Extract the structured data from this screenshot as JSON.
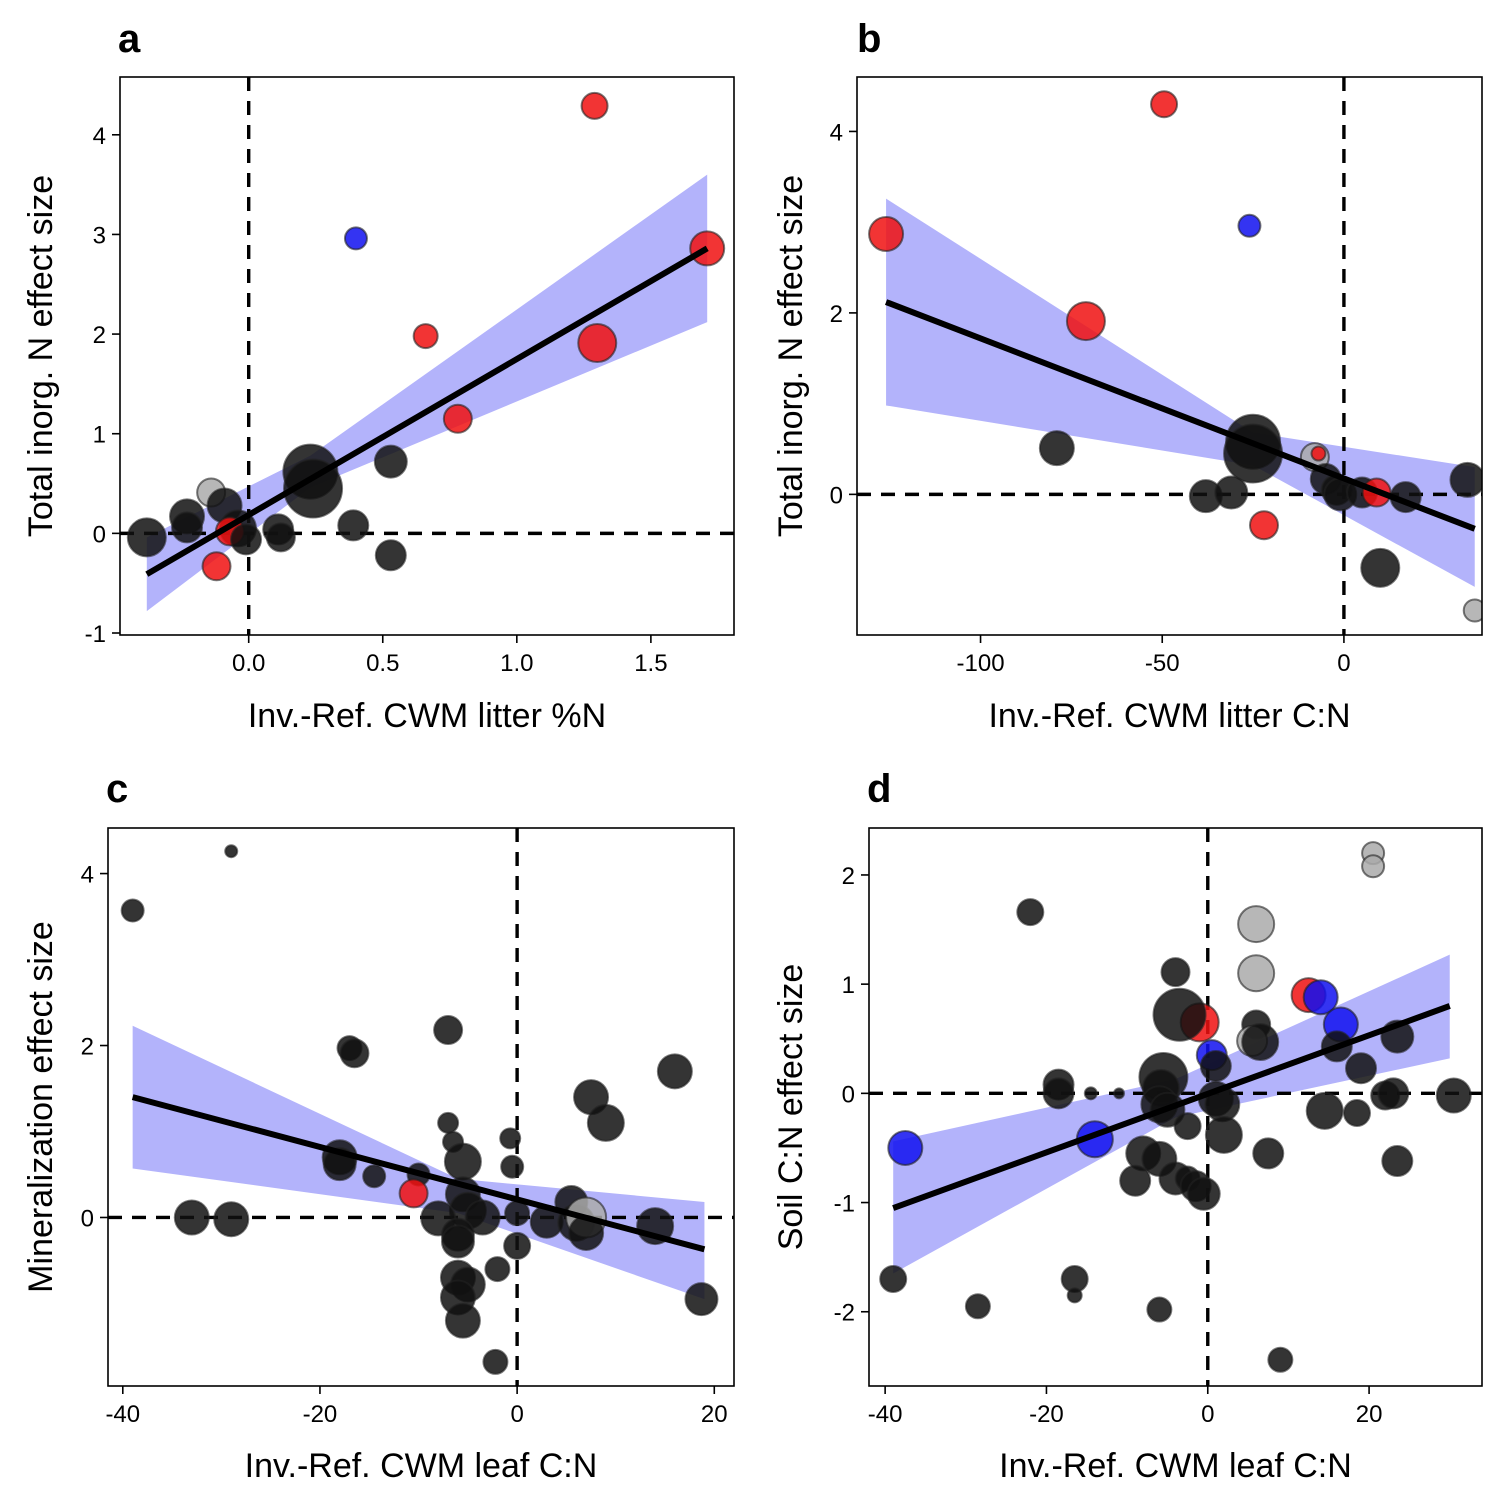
{
  "colors": {
    "invasive_high": "#f01010",
    "invasive_low": "#1010f0",
    "native": "#111111",
    "other": "#aaaaaa",
    "ribbon": "#b3b3fb",
    "line": "#000000"
  },
  "chart_data": [
    {
      "panel": "a",
      "type": "scatter",
      "xlabel": "Inv.-Ref. CWM litter %N",
      "ylabel": "Total inorg. N effect size",
      "xlim": [
        -0.48,
        1.81
      ],
      "ylim": [
        -1.02,
        4.58
      ],
      "xticks": [
        0.0,
        0.5,
        1.0,
        1.5
      ],
      "xtick_labels": [
        "0.0",
        "0.5",
        "1.0",
        "1.5"
      ],
      "yticks": [
        -1,
        0,
        1,
        2,
        3,
        4
      ],
      "ytick_labels": [
        "-1",
        "0",
        "1",
        "2",
        "3",
        "4"
      ],
      "ref_x": 0,
      "ref_y": 0,
      "fit": {
        "x0": -0.38,
        "y0": -0.41,
        "x1": 1.71,
        "y1": 2.86
      },
      "ribbon": {
        "x": [
          -0.38,
          0.23,
          1.71
        ],
        "lower": [
          -0.78,
          0.46,
          2.12
        ],
        "upper": [
          -0.04,
          0.78,
          3.6
        ]
      },
      "points": [
        {
          "x": 1.29,
          "y": 4.29,
          "s": 13,
          "c": "invasive_high"
        },
        {
          "x": 0.4,
          "y": 2.96,
          "s": 11,
          "c": "invasive_low"
        },
        {
          "x": 1.71,
          "y": 2.86,
          "s": 17,
          "c": "invasive_high"
        },
        {
          "x": 0.66,
          "y": 1.98,
          "s": 12,
          "c": "invasive_high"
        },
        {
          "x": 1.3,
          "y": 1.91,
          "s": 19,
          "c": "invasive_high"
        },
        {
          "x": 0.78,
          "y": 1.15,
          "s": 14,
          "c": "invasive_high"
        },
        {
          "x": 0.53,
          "y": 0.72,
          "s": 16,
          "c": "native"
        },
        {
          "x": 0.23,
          "y": 0.62,
          "s": 27,
          "c": "native"
        },
        {
          "x": 0.24,
          "y": 0.45,
          "s": 29,
          "c": "native"
        },
        {
          "x": -0.14,
          "y": 0.41,
          "s": 14,
          "c": "other"
        },
        {
          "x": -0.09,
          "y": 0.28,
          "s": 17,
          "c": "native"
        },
        {
          "x": -0.23,
          "y": 0.17,
          "s": 17,
          "c": "native"
        },
        {
          "x": -0.04,
          "y": 0.05,
          "s": 18,
          "c": "native"
        },
        {
          "x": -0.23,
          "y": 0.06,
          "s": 15,
          "c": "native"
        },
        {
          "x": 0.11,
          "y": 0.04,
          "s": 15,
          "c": "native"
        },
        {
          "x": 0.12,
          "y": -0.04,
          "s": 14,
          "c": "native"
        },
        {
          "x": -0.38,
          "y": -0.04,
          "s": 19,
          "c": "native"
        },
        {
          "x": -0.07,
          "y": 0.02,
          "s": 14,
          "c": "invasive_high"
        },
        {
          "x": -0.01,
          "y": -0.06,
          "s": 15,
          "c": "native"
        },
        {
          "x": 0.39,
          "y": 0.08,
          "s": 15,
          "c": "native"
        },
        {
          "x": 0.53,
          "y": -0.22,
          "s": 15,
          "c": "native"
        },
        {
          "x": -0.12,
          "y": -0.33,
          "s": 14,
          "c": "invasive_high"
        }
      ]
    },
    {
      "panel": "b",
      "type": "scatter",
      "xlabel": "Inv.-Ref. CWM litter C:N",
      "ylabel": "Total inorg. N effect size",
      "xlim": [
        -134,
        38
      ],
      "ylim": [
        -1.55,
        4.6
      ],
      "xticks": [
        -100,
        -50,
        0
      ],
      "xtick_labels": [
        "-100",
        "-50",
        "0"
      ],
      "yticks": [
        0,
        2,
        4
      ],
      "ytick_labels": [
        "0",
        "2",
        "4"
      ],
      "ref_x": 0,
      "ref_y": 0,
      "fit": {
        "x0": -126,
        "y0": 2.12,
        "x1": 36,
        "y1": -0.38
      },
      "ribbon": {
        "x": [
          -126,
          -25,
          36
        ],
        "lower": [
          0.98,
          0.32,
          -1.02
        ],
        "upper": [
          3.26,
          0.68,
          0.3
        ]
      },
      "points": [
        {
          "x": -49.5,
          "y": 4.3,
          "s": 13,
          "c": "invasive_high"
        },
        {
          "x": -26,
          "y": 2.96,
          "s": 11,
          "c": "invasive_low"
        },
        {
          "x": -126,
          "y": 2.87,
          "s": 17,
          "c": "invasive_high"
        },
        {
          "x": -71,
          "y": 1.91,
          "s": 19,
          "c": "invasive_high"
        },
        {
          "x": -79,
          "y": 0.51,
          "s": 17,
          "c": "native"
        },
        {
          "x": -25,
          "y": 0.58,
          "s": 27,
          "c": "native"
        },
        {
          "x": -25,
          "y": 0.45,
          "s": 29,
          "c": "native"
        },
        {
          "x": -8,
          "y": 0.41,
          "s": 14,
          "c": "other"
        },
        {
          "x": -7,
          "y": 0.45,
          "s": 7,
          "c": "invasive_high"
        },
        {
          "x": -38,
          "y": -0.02,
          "s": 16,
          "c": "native"
        },
        {
          "x": -31,
          "y": 0.02,
          "s": 16,
          "c": "native"
        },
        {
          "x": -5,
          "y": 0.17,
          "s": 15,
          "c": "native"
        },
        {
          "x": -2,
          "y": 0.05,
          "s": 15,
          "c": "native"
        },
        {
          "x": -1,
          "y": 0.0,
          "s": 16,
          "c": "native"
        },
        {
          "x": 5,
          "y": 0.02,
          "s": 15,
          "c": "native"
        },
        {
          "x": 9,
          "y": 0.02,
          "s": 14,
          "c": "invasive_high"
        },
        {
          "x": 17,
          "y": -0.03,
          "s": 15,
          "c": "native"
        },
        {
          "x": 34,
          "y": 0.16,
          "s": 17,
          "c": "native"
        },
        {
          "x": -22,
          "y": -0.34,
          "s": 14,
          "c": "invasive_high"
        },
        {
          "x": 10,
          "y": -0.81,
          "s": 19,
          "c": "native"
        },
        {
          "x": 36,
          "y": -1.28,
          "s": 11,
          "c": "other"
        }
      ]
    },
    {
      "panel": "c",
      "type": "scatter",
      "xlabel": "Inv.-Ref. CWM leaf C:N",
      "ylabel": "Mineralization effect size",
      "xlim": [
        -41.5,
        22
      ],
      "ylim": [
        -1.96,
        4.53
      ],
      "xticks": [
        -40,
        -20,
        0,
        20
      ],
      "xtick_labels": [
        "-40",
        "-20",
        "0",
        "20"
      ],
      "yticks": [
        0,
        2,
        4
      ],
      "ytick_labels": [
        "0",
        "2",
        "4"
      ],
      "ref_x": 0,
      "ref_y": 0,
      "fit": {
        "x0": -39,
        "y0": 1.4,
        "x1": 19,
        "y1": -0.37
      },
      "ribbon": {
        "x": [
          -39,
          -6,
          19
        ],
        "lower": [
          0.57,
          0.05,
          -0.95
        ],
        "upper": [
          2.23,
          0.45,
          0.18
        ]
      },
      "points": [
        {
          "x": -39,
          "y": 3.57,
          "s": 11,
          "c": "native"
        },
        {
          "x": -29,
          "y": 4.26,
          "s": 6,
          "c": "native"
        },
        {
          "x": -17,
          "y": 1.97,
          "s": 12,
          "c": "native"
        },
        {
          "x": -16.5,
          "y": 1.91,
          "s": 14,
          "c": "native"
        },
        {
          "x": -7,
          "y": 2.18,
          "s": 14,
          "c": "native"
        },
        {
          "x": 16,
          "y": 1.7,
          "s": 17,
          "c": "native"
        },
        {
          "x": 7.5,
          "y": 1.4,
          "s": 17,
          "c": "native"
        },
        {
          "x": 9,
          "y": 1.1,
          "s": 18,
          "c": "native"
        },
        {
          "x": -7,
          "y": 1.1,
          "s": 10,
          "c": "native"
        },
        {
          "x": -6.5,
          "y": 0.88,
          "s": 10,
          "c": "native"
        },
        {
          "x": -0.7,
          "y": 0.92,
          "s": 10,
          "c": "native"
        },
        {
          "x": -18,
          "y": 0.7,
          "s": 17,
          "c": "native"
        },
        {
          "x": -18,
          "y": 0.62,
          "s": 16,
          "c": "native"
        },
        {
          "x": -5.5,
          "y": 0.65,
          "s": 18,
          "c": "native"
        },
        {
          "x": -0.5,
          "y": 0.59,
          "s": 11,
          "c": "native"
        },
        {
          "x": -14.5,
          "y": 0.48,
          "s": 11,
          "c": "native"
        },
        {
          "x": -10,
          "y": 0.5,
          "s": 11,
          "c": "native"
        },
        {
          "x": -10.5,
          "y": 0.28,
          "s": 14,
          "c": "invasive_high"
        },
        {
          "x": -5.5,
          "y": 0.27,
          "s": 17,
          "c": "native"
        },
        {
          "x": -5,
          "y": 0.08,
          "s": 18,
          "c": "native"
        },
        {
          "x": -33,
          "y": 0.0,
          "s": 17,
          "c": "native"
        },
        {
          "x": -29,
          "y": -0.02,
          "s": 17,
          "c": "native"
        },
        {
          "x": -8,
          "y": -0.01,
          "s": 17,
          "c": "native"
        },
        {
          "x": -3.5,
          "y": 0.0,
          "s": 17,
          "c": "native"
        },
        {
          "x": 0,
          "y": 0.05,
          "s": 12,
          "c": "native"
        },
        {
          "x": 3,
          "y": -0.05,
          "s": 16,
          "c": "native"
        },
        {
          "x": 5.5,
          "y": 0.18,
          "s": 16,
          "c": "native"
        },
        {
          "x": 6,
          "y": -0.06,
          "s": 18,
          "c": "native"
        },
        {
          "x": 7,
          "y": 0.0,
          "s": 20,
          "c": "other"
        },
        {
          "x": 7,
          "y": -0.18,
          "s": 17,
          "c": "native"
        },
        {
          "x": 14,
          "y": -0.1,
          "s": 18,
          "c": "native"
        },
        {
          "x": -6,
          "y": -0.2,
          "s": 16,
          "c": "native"
        },
        {
          "x": -6,
          "y": -0.28,
          "s": 16,
          "c": "native"
        },
        {
          "x": 0,
          "y": -0.33,
          "s": 13,
          "c": "native"
        },
        {
          "x": -6,
          "y": -0.7,
          "s": 17,
          "c": "native"
        },
        {
          "x": -5,
          "y": -0.78,
          "s": 17,
          "c": "native"
        },
        {
          "x": -6,
          "y": -0.93,
          "s": 17,
          "c": "native"
        },
        {
          "x": -2,
          "y": -0.6,
          "s": 12,
          "c": "native"
        },
        {
          "x": -5.5,
          "y": -1.2,
          "s": 17,
          "c": "native"
        },
        {
          "x": -2.2,
          "y": -1.68,
          "s": 12,
          "c": "native"
        },
        {
          "x": 18.7,
          "y": -0.95,
          "s": 16,
          "c": "native"
        }
      ]
    },
    {
      "panel": "d",
      "type": "scatter",
      "xlabel": "Inv.-Ref. CWM leaf C:N",
      "ylabel": "Soil C:N effect size",
      "xlim": [
        -42,
        34
      ],
      "ylim": [
        -2.68,
        2.43
      ],
      "xticks": [
        -40,
        -20,
        0,
        20
      ],
      "xtick_labels": [
        "-40",
        "-20",
        "0",
        "20"
      ],
      "yticks": [
        -2,
        -1,
        0,
        1,
        2
      ],
      "ytick_labels": [
        "-2",
        "-1",
        "0",
        "1",
        "2"
      ],
      "ref_x": 0,
      "ref_y": 0,
      "fit": {
        "x0": -39,
        "y0": -1.05,
        "x1": 30,
        "y1": 0.8
      },
      "ribbon": {
        "x": [
          -39,
          -4,
          30
        ],
        "lower": [
          -1.65,
          -0.22,
          0.32
        ],
        "upper": [
          -0.44,
          0.13,
          1.27
        ]
      },
      "points": [
        {
          "x": 20.5,
          "y": 2.2,
          "s": 11,
          "c": "other"
        },
        {
          "x": 20.5,
          "y": 2.08,
          "s": 11,
          "c": "other"
        },
        {
          "x": 6,
          "y": 1.55,
          "s": 18,
          "c": "other"
        },
        {
          "x": 6,
          "y": 1.1,
          "s": 18,
          "c": "other"
        },
        {
          "x": -22,
          "y": 1.66,
          "s": 13,
          "c": "native"
        },
        {
          "x": -4,
          "y": 1.11,
          "s": 14,
          "c": "native"
        },
        {
          "x": 12.5,
          "y": 0.9,
          "s": 17,
          "c": "invasive_high"
        },
        {
          "x": 14,
          "y": 0.88,
          "s": 17,
          "c": "invasive_low"
        },
        {
          "x": 16.5,
          "y": 0.63,
          "s": 17,
          "c": "invasive_low"
        },
        {
          "x": -1,
          "y": 0.65,
          "s": 19,
          "c": "invasive_high"
        },
        {
          "x": -3.5,
          "y": 0.72,
          "s": 26,
          "c": "native"
        },
        {
          "x": 6,
          "y": 0.63,
          "s": 14,
          "c": "native"
        },
        {
          "x": 5.5,
          "y": 0.48,
          "s": 15,
          "c": "other"
        },
        {
          "x": 6.5,
          "y": 0.47,
          "s": 18,
          "c": "native"
        },
        {
          "x": 16,
          "y": 0.43,
          "s": 15,
          "c": "native"
        },
        {
          "x": 23.5,
          "y": 0.52,
          "s": 16,
          "c": "native"
        },
        {
          "x": 0.5,
          "y": 0.35,
          "s": 15,
          "c": "invasive_low"
        },
        {
          "x": 1,
          "y": 0.25,
          "s": 15,
          "c": "native"
        },
        {
          "x": 19,
          "y": 0.23,
          "s": 15,
          "c": "native"
        },
        {
          "x": -5.5,
          "y": 0.15,
          "s": 24,
          "c": "native"
        },
        {
          "x": -5.8,
          "y": 0.05,
          "s": 18,
          "c": "native"
        },
        {
          "x": -18.5,
          "y": 0.08,
          "s": 15,
          "c": "native"
        },
        {
          "x": -18.5,
          "y": 0.0,
          "s": 15,
          "c": "native"
        },
        {
          "x": -14.5,
          "y": 0.0,
          "s": 6,
          "c": "native"
        },
        {
          "x": -11,
          "y": 0.0,
          "s": 5,
          "c": "native"
        },
        {
          "x": -6,
          "y": -0.1,
          "s": 18,
          "c": "native"
        },
        {
          "x": -5,
          "y": -0.15,
          "s": 17,
          "c": "native"
        },
        {
          "x": 1,
          "y": -0.05,
          "s": 17,
          "c": "native"
        },
        {
          "x": 1.8,
          "y": -0.1,
          "s": 17,
          "c": "native"
        },
        {
          "x": 14.5,
          "y": -0.16,
          "s": 18,
          "c": "native"
        },
        {
          "x": 18.5,
          "y": -0.18,
          "s": 13,
          "c": "native"
        },
        {
          "x": 22,
          "y": -0.02,
          "s": 14,
          "c": "native"
        },
        {
          "x": 23,
          "y": 0.0,
          "s": 15,
          "c": "native"
        },
        {
          "x": 30.5,
          "y": -0.02,
          "s": 17,
          "c": "native"
        },
        {
          "x": -14,
          "y": -0.42,
          "s": 18,
          "c": "invasive_low"
        },
        {
          "x": -37.5,
          "y": -0.5,
          "s": 17,
          "c": "invasive_low"
        },
        {
          "x": -2.5,
          "y": -0.3,
          "s": 13,
          "c": "native"
        },
        {
          "x": 2,
          "y": -0.38,
          "s": 18,
          "c": "native"
        },
        {
          "x": -8,
          "y": -0.55,
          "s": 17,
          "c": "native"
        },
        {
          "x": -6,
          "y": -0.6,
          "s": 17,
          "c": "native"
        },
        {
          "x": 7.5,
          "y": -0.55,
          "s": 15,
          "c": "native"
        },
        {
          "x": 23.5,
          "y": -0.62,
          "s": 15,
          "c": "native"
        },
        {
          "x": -9,
          "y": -0.8,
          "s": 15,
          "c": "native"
        },
        {
          "x": -4,
          "y": -0.78,
          "s": 16,
          "c": "native"
        },
        {
          "x": -2.5,
          "y": -0.78,
          "s": 12,
          "c": "native"
        },
        {
          "x": -1.5,
          "y": -0.85,
          "s": 15,
          "c": "native"
        },
        {
          "x": -0.5,
          "y": -0.92,
          "s": 16,
          "c": "native"
        },
        {
          "x": -39,
          "y": -1.7,
          "s": 13,
          "c": "native"
        },
        {
          "x": -16.5,
          "y": -1.7,
          "s": 13,
          "c": "native"
        },
        {
          "x": -16.5,
          "y": -1.85,
          "s": 7,
          "c": "native"
        },
        {
          "x": -28.5,
          "y": -1.95,
          "s": 12,
          "c": "native"
        },
        {
          "x": -6,
          "y": -1.98,
          "s": 12,
          "c": "native"
        },
        {
          "x": 9,
          "y": -2.44,
          "s": 12,
          "c": "native"
        }
      ]
    }
  ]
}
